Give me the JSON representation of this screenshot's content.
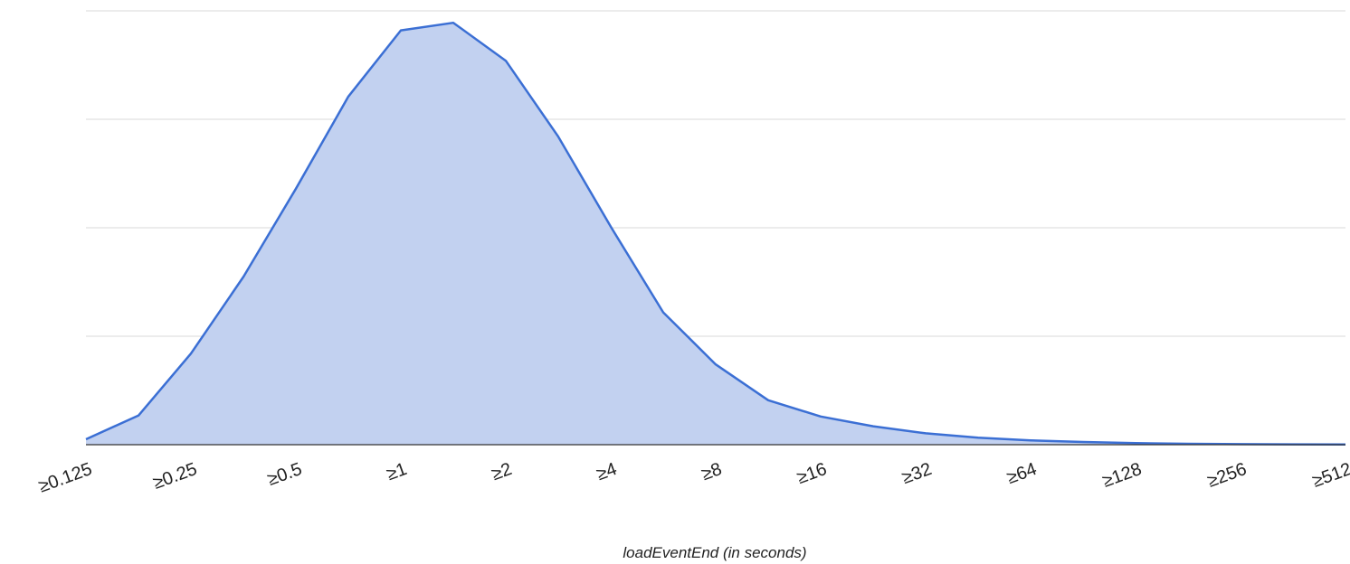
{
  "chart_data": {
    "type": "area",
    "title": "",
    "xlabel": "loadEventEnd (in seconds)",
    "ylabel": "",
    "x_scale": "log2",
    "tick_labels": [
      "≥0.125",
      "≥0.25",
      "≥0.5",
      "≥1",
      "≥2",
      "≥4",
      "≥8",
      "≥16",
      "≥32",
      "≥64",
      "≥128",
      "≥256",
      "≥512"
    ],
    "x": [
      0.125,
      0.177,
      0.25,
      0.354,
      0.5,
      0.707,
      1,
      1.414,
      2,
      2.828,
      4,
      5.657,
      8,
      11.314,
      16,
      22.627,
      32,
      45.255,
      64,
      90.51,
      128,
      181.02,
      256,
      362.04,
      512
    ],
    "values": [
      0.5,
      2.7,
      8.4,
      15.5,
      23.6,
      32.1,
      38.2,
      38.9,
      35.4,
      28.4,
      20.1,
      12.2,
      7.4,
      4.1,
      2.6,
      1.7,
      1.05,
      0.65,
      0.4,
      0.25,
      0.14,
      0.08,
      0.05,
      0.03,
      0.02
    ],
    "ylim": [
      0,
      40
    ],
    "grid": true,
    "legend": "none",
    "colors": {
      "line": "#3b6fd4",
      "fill": "#c2d1f0",
      "grid": "#d9d9d9",
      "baseline": "#333333"
    }
  }
}
